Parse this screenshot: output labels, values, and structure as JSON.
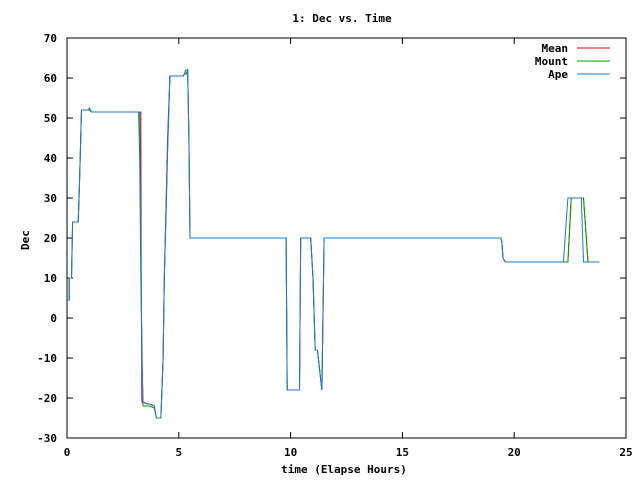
{
  "chart_data": {
    "type": "line",
    "title": "1: Dec vs. Time",
    "xlabel": "time (Elapse Hours)",
    "ylabel": "Dec",
    "xlim": [
      0,
      25
    ],
    "ylim": [
      -30,
      70
    ],
    "xticks": [
      0,
      5,
      10,
      15,
      20,
      25
    ],
    "yticks": [
      -30,
      -20,
      -10,
      0,
      10,
      20,
      30,
      40,
      50,
      60,
      70
    ],
    "grid": false,
    "legend_position": "top-right",
    "series": [
      {
        "name": "Mean",
        "color": "#cc0000",
        "x": [
          0.0,
          0.1,
          0.1,
          0.2,
          0.25,
          0.5,
          0.55,
          0.6,
          0.65,
          0.7,
          1.0,
          1.1,
          1.2,
          3.0,
          3.15,
          3.3,
          3.32,
          3.35,
          3.6,
          3.7,
          3.9,
          4.0,
          4.2,
          4.3,
          4.35,
          4.5,
          4.6,
          4.7,
          5.2,
          5.25,
          5.3,
          5.4,
          5.45,
          5.5,
          5.6,
          9.8,
          9.85,
          10.4,
          10.45,
          10.6,
          10.9,
          11.0,
          11.1,
          11.2,
          11.4,
          11.5,
          19.4,
          19.45,
          19.5,
          19.6,
          19.65,
          19.7,
          19.75,
          20.0,
          21.0,
          21.2,
          21.5,
          22.2,
          22.4,
          22.55,
          23.0,
          23.1,
          23.3,
          23.8
        ],
        "y": [
          4.5,
          4.5,
          10,
          10,
          24,
          24,
          32,
          42,
          52,
          52,
          52,
          51.5,
          51.5,
          51.5,
          51.5,
          51.5,
          10,
          -21,
          -21.5,
          -21.5,
          -22,
          -25,
          -25,
          -10,
          10,
          45,
          60.5,
          60.5,
          60.5,
          61,
          61,
          61,
          45,
          20,
          20,
          20,
          -18,
          -18,
          20,
          20,
          20,
          10,
          -8,
          -8,
          -18,
          20,
          20,
          19,
          15,
          14,
          14,
          14,
          14,
          14,
          14,
          14,
          14,
          14,
          14,
          30,
          30,
          30,
          14,
          14
        ]
      },
      {
        "name": "Mount",
        "color": "#00a000",
        "x": [
          0.0,
          0.1,
          0.1,
          0.2,
          0.25,
          0.5,
          0.55,
          0.6,
          0.65,
          0.7,
          1.0,
          1.1,
          1.2,
          3.0,
          3.15,
          3.2,
          3.25,
          3.3,
          3.4,
          3.6,
          3.7,
          3.9,
          4.0,
          4.2,
          4.3,
          4.35,
          4.5,
          4.6,
          4.7,
          5.2,
          5.25,
          5.3,
          5.4,
          5.45,
          5.5,
          5.6,
          9.8,
          9.85,
          10.4,
          10.45,
          10.6,
          10.9,
          11.0,
          11.1,
          11.2,
          11.4,
          11.5,
          19.4,
          19.45,
          19.5,
          19.6,
          19.65,
          19.7,
          19.75,
          20.0,
          21.0,
          21.5,
          22.2,
          22.4,
          22.55,
          23.0,
          23.1,
          23.3,
          23.8
        ],
        "y": [
          4.5,
          4.5,
          10,
          10,
          24,
          24,
          32,
          42,
          52,
          52,
          52,
          51.5,
          51.5,
          51.5,
          51.5,
          51.5,
          40,
          10,
          -22,
          -22,
          -22,
          -22.5,
          -25,
          -25,
          -10,
          10,
          42,
          60.5,
          60.5,
          60.5,
          61,
          61,
          62,
          45,
          20,
          20,
          20,
          -18,
          -18,
          20,
          20,
          20,
          10,
          -8,
          -8,
          -18,
          20,
          20,
          19,
          15,
          14,
          14,
          14,
          14,
          14,
          14,
          14,
          14,
          14,
          30,
          30,
          30,
          14,
          14
        ]
      },
      {
        "name": "Ape",
        "color": "#1f77d4",
        "x": [
          0.0,
          0.1,
          0.1,
          0.2,
          0.25,
          0.5,
          0.55,
          0.6,
          0.65,
          0.7,
          0.95,
          1.0,
          1.1,
          1.2,
          3.0,
          3.2,
          3.25,
          3.3,
          3.35,
          3.4,
          3.6,
          3.7,
          3.9,
          4.0,
          4.2,
          4.3,
          4.35,
          4.45,
          4.5,
          4.6,
          5.1,
          5.15,
          5.2,
          5.25,
          5.3,
          5.4,
          5.45,
          5.5,
          5.6,
          9.8,
          9.85,
          10.4,
          10.45,
          10.6,
          10.9,
          11.0,
          11.1,
          11.2,
          11.4,
          11.5,
          19.4,
          19.45,
          19.5,
          19.6,
          19.65,
          19.7,
          19.75,
          20.0,
          21.0,
          21.5,
          22.2,
          22.4,
          22.55,
          23.0,
          23.1,
          23.3,
          23.8
        ],
        "y": [
          4.5,
          4.5,
          10,
          10,
          24,
          24,
          32,
          42,
          52,
          52,
          52,
          52.5,
          51.5,
          51.5,
          51.5,
          51.5,
          51.5,
          20,
          -10,
          -21,
          -21.5,
          -21.5,
          -22,
          -25,
          -25,
          -10,
          10,
          30,
          42,
          60.5,
          60.5,
          60.5,
          60.5,
          61,
          62,
          62,
          45,
          20,
          20,
          20,
          -18,
          -18,
          20,
          20,
          20,
          10,
          -8,
          -8,
          -18,
          20,
          20,
          19,
          15,
          14,
          14,
          14,
          14,
          14,
          14,
          14,
          14,
          30,
          30,
          30,
          14,
          14,
          14
        ]
      }
    ]
  }
}
